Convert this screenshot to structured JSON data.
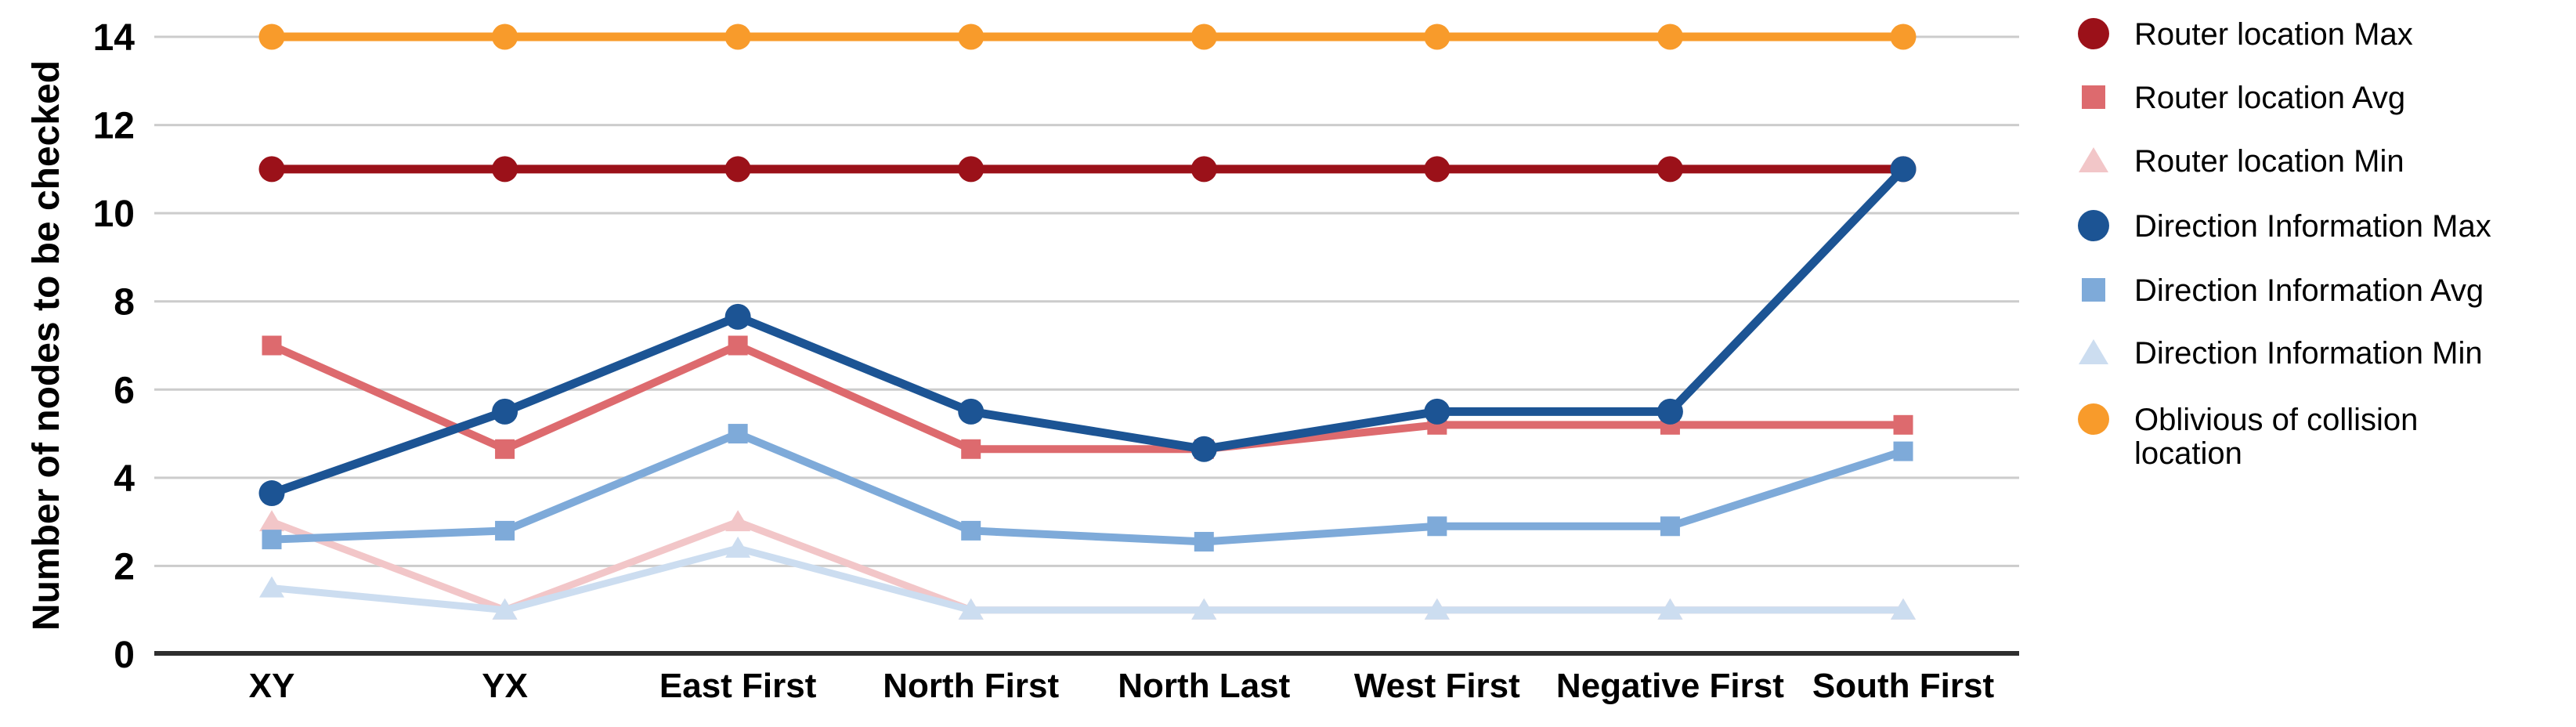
{
  "chart_data": {
    "type": "line",
    "title": "",
    "xlabel": "",
    "ylabel": "Number of nodes to be checked",
    "ylim": [
      0,
      14
    ],
    "y_ticks": [
      0,
      2,
      4,
      6,
      8,
      10,
      12,
      14
    ],
    "grid": true,
    "legend_position": "right",
    "categories": [
      "XY",
      "YX",
      "East First",
      "North First",
      "North Last",
      "West First",
      "Negative First",
      "South First"
    ],
    "series": [
      {
        "name": "Router location Max",
        "marker": "circle",
        "color": "#9B1119",
        "values": [
          11,
          11,
          11,
          11,
          11,
          11,
          11,
          11
        ]
      },
      {
        "name": "Router location Avg",
        "marker": "square",
        "color": "#DD6A6E",
        "values": [
          7,
          4.65,
          7,
          4.65,
          4.65,
          5.2,
          5.2,
          5.2
        ]
      },
      {
        "name": "Router location Min",
        "marker": "triangle",
        "color": "#F2C6C8",
        "values": [
          3,
          1,
          3,
          1,
          1,
          1,
          1,
          1
        ]
      },
      {
        "name": "Direction Information Max",
        "marker": "circle",
        "color": "#1C5494",
        "values": [
          3.65,
          5.5,
          7.65,
          5.5,
          4.65,
          5.5,
          5.5,
          11
        ]
      },
      {
        "name": "Direction Information Avg",
        "marker": "square",
        "color": "#7EAAD9",
        "values": [
          2.6,
          2.8,
          5,
          2.8,
          2.55,
          2.9,
          2.9,
          4.6
        ]
      },
      {
        "name": "Direction Information Min",
        "marker": "triangle",
        "color": "#CCDDF0",
        "values": [
          1.5,
          1,
          2.4,
          1,
          1,
          1,
          1,
          1
        ]
      },
      {
        "name": "Oblivious of collision location",
        "marker": "circle",
        "color": "#F89B2B",
        "values": [
          14,
          14,
          14,
          14,
          14,
          14,
          14,
          14
        ],
        "legend_lines": [
          "Oblivious of collision",
          "location"
        ]
      }
    ],
    "z_order": [
      2,
      5,
      1,
      4,
      0,
      3,
      6
    ],
    "colors": {
      "grid": "#CCCCCC",
      "axis": "#2E2E2E",
      "text": "#000000"
    }
  }
}
